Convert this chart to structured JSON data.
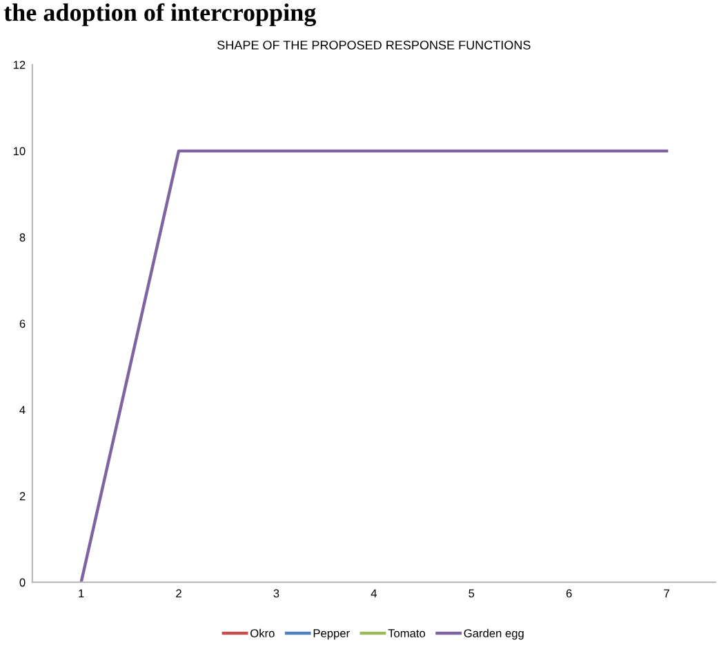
{
  "chart_data": {
    "type": "line",
    "title": "SHAPE OF THE PROPOSED RESPONSE FUNCTIONS",
    "annotations": [
      "the adoption of intercropping"
    ],
    "categories": [
      "1",
      "2",
      "3",
      "4",
      "5",
      "6",
      "7"
    ],
    "series": [
      {
        "name": "Okro",
        "color": "#c0504d",
        "values": [
          null,
          null,
          null,
          null,
          null,
          null,
          null
        ]
      },
      {
        "name": "Pepper",
        "color": "#4f81bd",
        "values": [
          null,
          null,
          null,
          null,
          null,
          null,
          null
        ]
      },
      {
        "name": "Tomato",
        "color": "#9bbb59",
        "values": [
          null,
          null,
          null,
          null,
          null,
          null,
          null
        ]
      },
      {
        "name": "Garden egg",
        "color": "#8064a2",
        "values": [
          0,
          10,
          10,
          10,
          10,
          10,
          10
        ]
      }
    ],
    "ylim": [
      0,
      12
    ],
    "yticks": [
      0,
      2,
      4,
      6,
      8,
      10,
      12
    ],
    "grid": false,
    "legend": "bottom",
    "marker": "none",
    "line_style": "solid"
  }
}
